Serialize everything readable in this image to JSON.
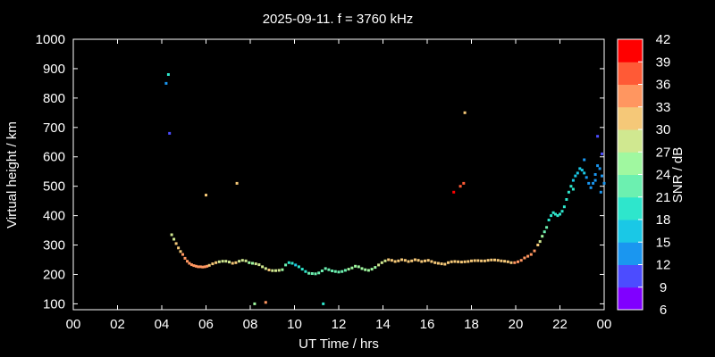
{
  "chart_data": {
    "type": "scatter",
    "title": "2025-09-11. f = 3760 kHz",
    "xlabel": "UT Time / hrs",
    "ylabel": "Virtual height / km",
    "colorbar_label": "SNR / dB",
    "xlim": [
      0,
      24
    ],
    "ylim": [
      80,
      1000
    ],
    "x_ticks": [
      "00",
      "02",
      "04",
      "06",
      "08",
      "10",
      "12",
      "14",
      "16",
      "18",
      "20",
      "22",
      "00"
    ],
    "y_ticks": [
      100,
      200,
      300,
      400,
      500,
      600,
      700,
      800,
      900,
      1000
    ],
    "colorbar": {
      "min": 6,
      "max": 42,
      "ticks": [
        6,
        9,
        12,
        15,
        18,
        21,
        24,
        27,
        30,
        33,
        36,
        39,
        42
      ],
      "colors": [
        "#8000ff",
        "#4c4cff",
        "#1a96f0",
        "#1ac8e6",
        "#2ee6cc",
        "#6cf0b0",
        "#a0f8a0",
        "#d0e890",
        "#f5c878",
        "#ff9660",
        "#ff5a36",
        "#ff0000"
      ]
    },
    "series": [
      {
        "points": [
          [
            4.2,
            850,
            12
          ],
          [
            4.3,
            880,
            20
          ],
          [
            4.35,
            680,
            11
          ],
          [
            4.45,
            335,
            27
          ],
          [
            4.55,
            320,
            29
          ],
          [
            4.65,
            305,
            30
          ],
          [
            4.75,
            290,
            31
          ],
          [
            4.85,
            278,
            32
          ],
          [
            4.95,
            268,
            33
          ],
          [
            5.05,
            255,
            33
          ],
          [
            5.15,
            245,
            34
          ],
          [
            5.25,
            238,
            34
          ],
          [
            5.35,
            233,
            35
          ],
          [
            5.45,
            230,
            35
          ],
          [
            5.55,
            228,
            35
          ],
          [
            5.65,
            226,
            35
          ],
          [
            5.75,
            226,
            35
          ],
          [
            5.85,
            225,
            35
          ],
          [
            5.95,
            226,
            34
          ],
          [
            6.05,
            228,
            33
          ],
          [
            6.15,
            231,
            32
          ],
          [
            6.3,
            236,
            31
          ],
          [
            6.45,
            240,
            30
          ],
          [
            6.6,
            243,
            29
          ],
          [
            6.75,
            245,
            28
          ],
          [
            6.9,
            245,
            28
          ],
          [
            7.05,
            242,
            29
          ],
          [
            7.2,
            238,
            30
          ],
          [
            7.35,
            240,
            30
          ],
          [
            7.5,
            245,
            29
          ],
          [
            7.65,
            248,
            28
          ],
          [
            7.8,
            246,
            27
          ],
          [
            7.95,
            240,
            26
          ],
          [
            8.1,
            238,
            26
          ],
          [
            8.25,
            236,
            27
          ],
          [
            8.4,
            233,
            27
          ],
          [
            8.55,
            226,
            28
          ],
          [
            8.7,
            220,
            29
          ],
          [
            8.85,
            215,
            30
          ],
          [
            9.0,
            213,
            29
          ],
          [
            9.15,
            213,
            28
          ],
          [
            9.3,
            214,
            27
          ],
          [
            9.45,
            216,
            26
          ],
          [
            9.6,
            232,
            22
          ],
          [
            9.75,
            240,
            20
          ],
          [
            9.9,
            238,
            18
          ],
          [
            10.05,
            232,
            17
          ],
          [
            10.2,
            226,
            18
          ],
          [
            10.35,
            218,
            19
          ],
          [
            10.5,
            210,
            20
          ],
          [
            10.65,
            204,
            21
          ],
          [
            10.8,
            203,
            21
          ],
          [
            10.95,
            202,
            21
          ],
          [
            11.1,
            205,
            21
          ],
          [
            11.25,
            212,
            22
          ],
          [
            11.4,
            220,
            23
          ],
          [
            11.55,
            216,
            23
          ],
          [
            11.7,
            212,
            22
          ],
          [
            11.85,
            210,
            22
          ],
          [
            12.0,
            208,
            22
          ],
          [
            12.15,
            210,
            22
          ],
          [
            12.3,
            214,
            23
          ],
          [
            12.45,
            218,
            24
          ],
          [
            12.6,
            222,
            25
          ],
          [
            12.75,
            228,
            26
          ],
          [
            12.9,
            226,
            26
          ],
          [
            13.05,
            220,
            25
          ],
          [
            13.2,
            216,
            24
          ],
          [
            13.35,
            214,
            24
          ],
          [
            13.5,
            218,
            25
          ],
          [
            13.65,
            224,
            26
          ],
          [
            13.8,
            232,
            27
          ],
          [
            13.95,
            240,
            28
          ],
          [
            14.1,
            246,
            29
          ],
          [
            14.25,
            250,
            30
          ],
          [
            14.4,
            248,
            30
          ],
          [
            14.55,
            244,
            30
          ],
          [
            14.7,
            246,
            30
          ],
          [
            14.85,
            250,
            30
          ],
          [
            15.0,
            248,
            31
          ],
          [
            15.15,
            244,
            31
          ],
          [
            15.3,
            246,
            31
          ],
          [
            15.45,
            250,
            31
          ],
          [
            15.6,
            248,
            31
          ],
          [
            15.75,
            244,
            31
          ],
          [
            15.9,
            246,
            31
          ],
          [
            16.05,
            248,
            31
          ],
          [
            16.2,
            244,
            31
          ],
          [
            16.35,
            240,
            32
          ],
          [
            16.5,
            238,
            32
          ],
          [
            16.65,
            236,
            32
          ],
          [
            16.8,
            235,
            32
          ],
          [
            16.95,
            240,
            32
          ],
          [
            17.1,
            243,
            32
          ],
          [
            17.25,
            244,
            32
          ],
          [
            17.4,
            243,
            32
          ],
          [
            17.55,
            242,
            32
          ],
          [
            17.7,
            243,
            31
          ],
          [
            17.85,
            244,
            31
          ],
          [
            18.0,
            246,
            31
          ],
          [
            18.15,
            247,
            31
          ],
          [
            18.3,
            247,
            31
          ],
          [
            18.45,
            246,
            32
          ],
          [
            18.6,
            246,
            32
          ],
          [
            18.75,
            248,
            32
          ],
          [
            18.9,
            249,
            32
          ],
          [
            19.05,
            249,
            32
          ],
          [
            19.2,
            248,
            32
          ],
          [
            19.35,
            246,
            32
          ],
          [
            19.5,
            245,
            32
          ],
          [
            19.65,
            243,
            32
          ],
          [
            19.8,
            240,
            32
          ],
          [
            19.95,
            240,
            33
          ],
          [
            20.1,
            243,
            33
          ],
          [
            20.25,
            248,
            33
          ],
          [
            20.4,
            256,
            33
          ],
          [
            20.55,
            262,
            33
          ],
          [
            20.7,
            268,
            33
          ],
          [
            20.85,
            280,
            33
          ],
          [
            21.0,
            300,
            31
          ],
          [
            21.1,
            312,
            29
          ],
          [
            21.2,
            330,
            24
          ],
          [
            21.3,
            345,
            22
          ],
          [
            21.4,
            360,
            21
          ],
          [
            21.5,
            385,
            20
          ],
          [
            21.6,
            400,
            19
          ],
          [
            21.7,
            410,
            19
          ],
          [
            21.8,
            405,
            19
          ],
          [
            21.9,
            400,
            19
          ],
          [
            22.0,
            405,
            20
          ],
          [
            22.1,
            415,
            20
          ],
          [
            22.2,
            430,
            20
          ],
          [
            22.3,
            455,
            19
          ],
          [
            22.4,
            480,
            19
          ],
          [
            22.5,
            500,
            18
          ],
          [
            22.6,
            520,
            17
          ],
          [
            22.7,
            535,
            17
          ],
          [
            22.8,
            545,
            16
          ],
          [
            22.9,
            560,
            16
          ],
          [
            23.0,
            555,
            15
          ],
          [
            23.1,
            545,
            15
          ],
          [
            23.2,
            530,
            14
          ],
          [
            23.3,
            510,
            14
          ],
          [
            23.4,
            495,
            13
          ],
          [
            23.5,
            510,
            13
          ],
          [
            23.6,
            540,
            12
          ],
          [
            23.7,
            570,
            12
          ],
          [
            23.8,
            560,
            12
          ],
          [
            23.9,
            535,
            12
          ],
          [
            24.0,
            510,
            12
          ],
          [
            22.6,
            490,
            20
          ],
          [
            23.1,
            590,
            12
          ],
          [
            23.6,
            520,
            14
          ],
          [
            23.85,
            480,
            14
          ],
          [
            23.7,
            670,
            10
          ],
          [
            23.9,
            610,
            11
          ],
          [
            6.0,
            470,
            32
          ],
          [
            7.4,
            510,
            30
          ],
          [
            17.2,
            480,
            40
          ],
          [
            17.5,
            500,
            38
          ],
          [
            17.65,
            510,
            36
          ],
          [
            17.7,
            750,
            30
          ],
          [
            8.2,
            100,
            26
          ],
          [
            8.7,
            105,
            33
          ],
          [
            11.3,
            100,
            18
          ]
        ]
      }
    ]
  }
}
